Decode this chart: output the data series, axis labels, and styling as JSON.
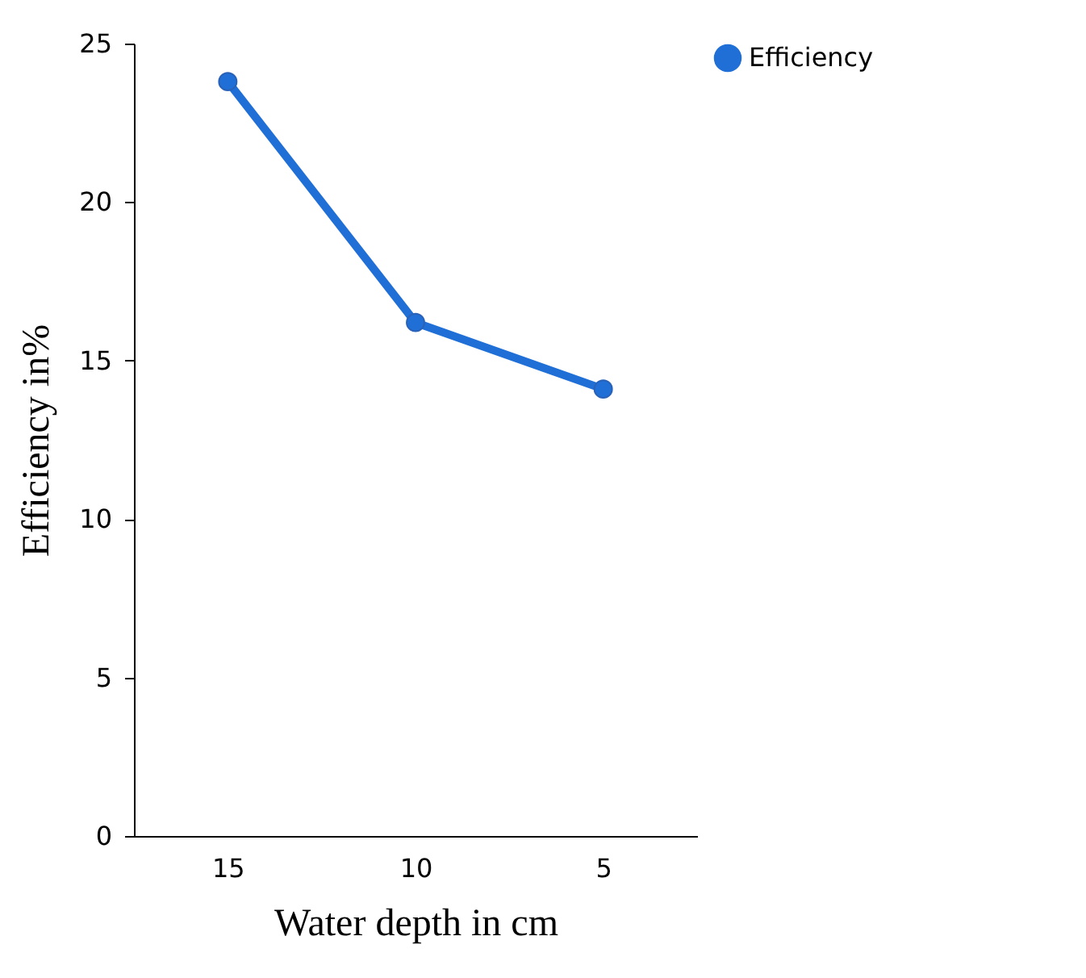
{
  "chart_data": {
    "type": "line",
    "xlabel": "Water depth in cm",
    "ylabel": "Efficiency in%",
    "categories": [
      "15",
      "10",
      "5"
    ],
    "series": [
      {
        "name": "Efficiency",
        "color": "#1f6fd6",
        "values": [
          23.8,
          16.2,
          14.1
        ]
      }
    ],
    "ylim": [
      0,
      25
    ],
    "yticks": [
      0,
      5,
      10,
      15,
      20,
      25
    ],
    "grid": false,
    "legend": "right",
    "marker": "circle",
    "line_style": "solid"
  }
}
